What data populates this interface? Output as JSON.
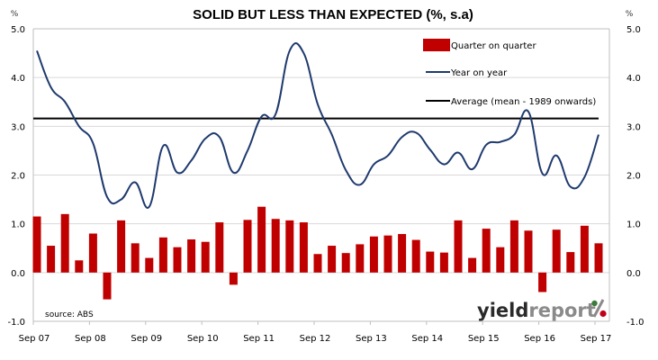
{
  "chart_data": {
    "type": "bar",
    "title": "SOLID BUT LESS THAN EXPECTED (%, s.a)",
    "ylabel_left": "%",
    "ylabel_right": "%",
    "ylim": [
      -1.0,
      5.0
    ],
    "yticks": [
      "5.0",
      "4.0",
      "3.0",
      "2.0",
      "1.0",
      "0.0",
      "-1.0"
    ],
    "ytick_values": [
      5,
      4,
      3,
      2,
      1,
      0,
      -1
    ],
    "grid": true,
    "xtick_labels": [
      "Sep 07",
      "Sep 08",
      "Sep 09",
      "Sep 10",
      "Sep 11",
      "Sep 12",
      "Sep 13",
      "Sep 14",
      "Sep 15",
      "Sep 16",
      "Sep 17"
    ],
    "x_start": "Sep 07",
    "x_end": "Sep 17",
    "frequency": "quarterly",
    "legend_position": "top-right",
    "series": [
      {
        "name": "Quarter on quarter",
        "type": "bar",
        "color": "#c00000",
        "values": [
          1.15,
          0.55,
          1.2,
          0.25,
          0.8,
          -0.55,
          1.07,
          0.6,
          0.3,
          0.72,
          0.52,
          0.68,
          0.63,
          1.03,
          -0.25,
          1.08,
          1.35,
          1.1,
          1.07,
          1.03,
          0.38,
          0.55,
          0.4,
          0.58,
          0.74,
          0.76,
          0.79,
          0.67,
          0.43,
          0.41,
          1.07,
          0.3,
          0.9,
          0.52,
          1.07,
          0.86,
          -0.4,
          0.88,
          0.42,
          0.96,
          0.6
        ]
      },
      {
        "name": "Year on year",
        "type": "line",
        "color": "#1f3a6e",
        "values": [
          4.55,
          3.8,
          3.5,
          3.0,
          2.65,
          1.55,
          1.5,
          1.85,
          1.35,
          2.6,
          2.05,
          2.3,
          2.75,
          2.78,
          2.05,
          2.5,
          3.2,
          3.25,
          4.55,
          4.5,
          3.45,
          2.83,
          2.1,
          1.8,
          2.22,
          2.4,
          2.78,
          2.87,
          2.52,
          2.22,
          2.46,
          2.12,
          2.62,
          2.68,
          2.83,
          3.3,
          2.03,
          2.4,
          1.76,
          1.96,
          2.83
        ]
      },
      {
        "name": "Average (mean - 1989 onwards)",
        "type": "line",
        "color": "#000000",
        "value": 3.16
      }
    ],
    "annotations": [
      "source: ABS"
    ]
  },
  "logo": {
    "part1": "yield",
    "part2": "report",
    "symbol": "%"
  },
  "colors": {
    "bar": "#c00000",
    "yoy": "#1f3a6e",
    "avg": "#000000",
    "grid": "#d9d9d9",
    "logo_green": "#3a7d3a",
    "logo_red": "#c0001a"
  }
}
